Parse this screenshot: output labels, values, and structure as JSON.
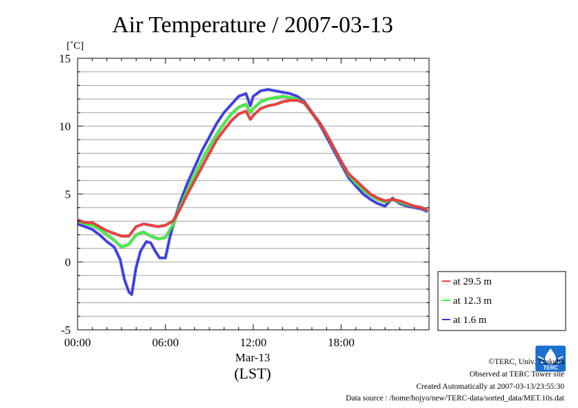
{
  "chart_data": {
    "type": "line",
    "title": "Air Temperature / 2007-03-13",
    "ylabel": "[˚C]",
    "xlabel": "(LST)",
    "x_date_label": "Mar-13",
    "x_ticks": [
      "00:00",
      "06:00",
      "12:00",
      "18:00"
    ],
    "y_ticks": [
      "15",
      "10",
      "5",
      "0",
      "-5"
    ],
    "xlim": [
      0,
      24
    ],
    "ylim": [
      -5,
      15
    ],
    "grid": true,
    "legend_position": "right",
    "series": [
      {
        "name": "at 29.5 m",
        "color": "#ff3333",
        "x": [
          0,
          0.5,
          1,
          1.5,
          2,
          2.5,
          3,
          3.5,
          4,
          4.5,
          5,
          5.5,
          6,
          6.5,
          7,
          7.5,
          8,
          8.5,
          9,
          9.5,
          10,
          10.5,
          11,
          11.5,
          11.8,
          12,
          12.5,
          13,
          13.5,
          14,
          14.5,
          15,
          15.5,
          16,
          16.5,
          17,
          17.5,
          18,
          18.5,
          19,
          19.5,
          20,
          20.5,
          21,
          21.5,
          22,
          22.5,
          23,
          23.5,
          23.9
        ],
        "y": [
          3.1,
          2.9,
          2.9,
          2.6,
          2.3,
          2.1,
          1.9,
          1.9,
          2.6,
          2.8,
          2.7,
          2.6,
          2.7,
          3.0,
          3.9,
          5.0,
          6.0,
          7.0,
          8.0,
          9.0,
          9.7,
          10.4,
          10.9,
          11.1,
          10.5,
          10.8,
          11.3,
          11.5,
          11.6,
          11.8,
          11.9,
          11.9,
          11.7,
          11.0,
          10.3,
          9.4,
          8.4,
          7.4,
          6.5,
          6.0,
          5.5,
          5.0,
          4.7,
          4.5,
          4.6,
          4.5,
          4.3,
          4.1,
          4.0,
          3.8
        ]
      },
      {
        "name": "at 12.3 m",
        "color": "#33ff33",
        "x": [
          0,
          0.5,
          1,
          1.5,
          2,
          2.5,
          3,
          3.5,
          4,
          4.5,
          5,
          5.5,
          6,
          6.5,
          7,
          7.5,
          8,
          8.5,
          9,
          9.5,
          10,
          10.5,
          11,
          11.5,
          11.8,
          12,
          12.5,
          13,
          13.5,
          14,
          14.5,
          15,
          15.5,
          16,
          16.5,
          17,
          17.5,
          18,
          18.5,
          19,
          19.5,
          20,
          20.5,
          21,
          21.5,
          22,
          22.5,
          23,
          23.5,
          23.9
        ],
        "y": [
          3.0,
          2.8,
          2.7,
          2.4,
          2.0,
          1.6,
          1.1,
          1.3,
          2.0,
          2.2,
          1.9,
          1.7,
          1.8,
          2.7,
          4.1,
          5.3,
          6.4,
          7.5,
          8.5,
          9.4,
          10.2,
          10.9,
          11.4,
          11.6,
          11.0,
          11.3,
          11.8,
          12.0,
          12.1,
          12.2,
          12.1,
          12.0,
          11.7,
          11.0,
          10.3,
          9.4,
          8.4,
          7.4,
          6.4,
          5.8,
          5.3,
          4.9,
          4.6,
          4.4,
          4.6,
          4.4,
          4.2,
          4.1,
          4.0,
          3.8
        ]
      },
      {
        "name": "at 1.6 m",
        "color": "#3333ff",
        "x": [
          0,
          0.5,
          1,
          1.5,
          2,
          2.5,
          2.9,
          3.2,
          3.5,
          3.7,
          4,
          4.3,
          4.7,
          5,
          5.3,
          5.6,
          6,
          6.3,
          6.6,
          7,
          7.5,
          8,
          8.5,
          9,
          9.5,
          10,
          10.5,
          11,
          11.5,
          11.8,
          12,
          12.5,
          13,
          13.5,
          14,
          14.5,
          15,
          15.5,
          16,
          16.5,
          17,
          17.5,
          18,
          18.5,
          19,
          19.5,
          20,
          20.5,
          21,
          21.5,
          22,
          22.5,
          23,
          23.5,
          23.9
        ],
        "y": [
          2.8,
          2.6,
          2.4,
          2.0,
          1.5,
          1.1,
          0.2,
          -1.3,
          -2.2,
          -2.4,
          -0.4,
          0.8,
          1.5,
          1.4,
          0.8,
          0.3,
          0.3,
          1.8,
          3.0,
          4.4,
          5.8,
          7.0,
          8.2,
          9.2,
          10.2,
          11.0,
          11.6,
          12.2,
          12.4,
          11.5,
          12.2,
          12.6,
          12.7,
          12.6,
          12.5,
          12.4,
          12.2,
          11.8,
          11.0,
          10.2,
          9.2,
          8.2,
          7.2,
          6.2,
          5.6,
          5.0,
          4.6,
          4.3,
          4.1,
          4.7,
          4.3,
          4.1,
          4.0,
          3.9,
          3.7
        ]
      }
    ]
  },
  "footer": {
    "copyright": "©TERC, Univ. Tsukuba",
    "observed": "Observed at TERC Tower site",
    "created": "Created Automatically at 2007-03-13/23:55:30",
    "source": "Data source : /home/hojyo/new/TERC-data/sorted_data/MET.10s.dat",
    "logo_text": "TERC"
  },
  "colors": {
    "grid": "#a0a0a0",
    "logo": "#1d6fd0"
  }
}
